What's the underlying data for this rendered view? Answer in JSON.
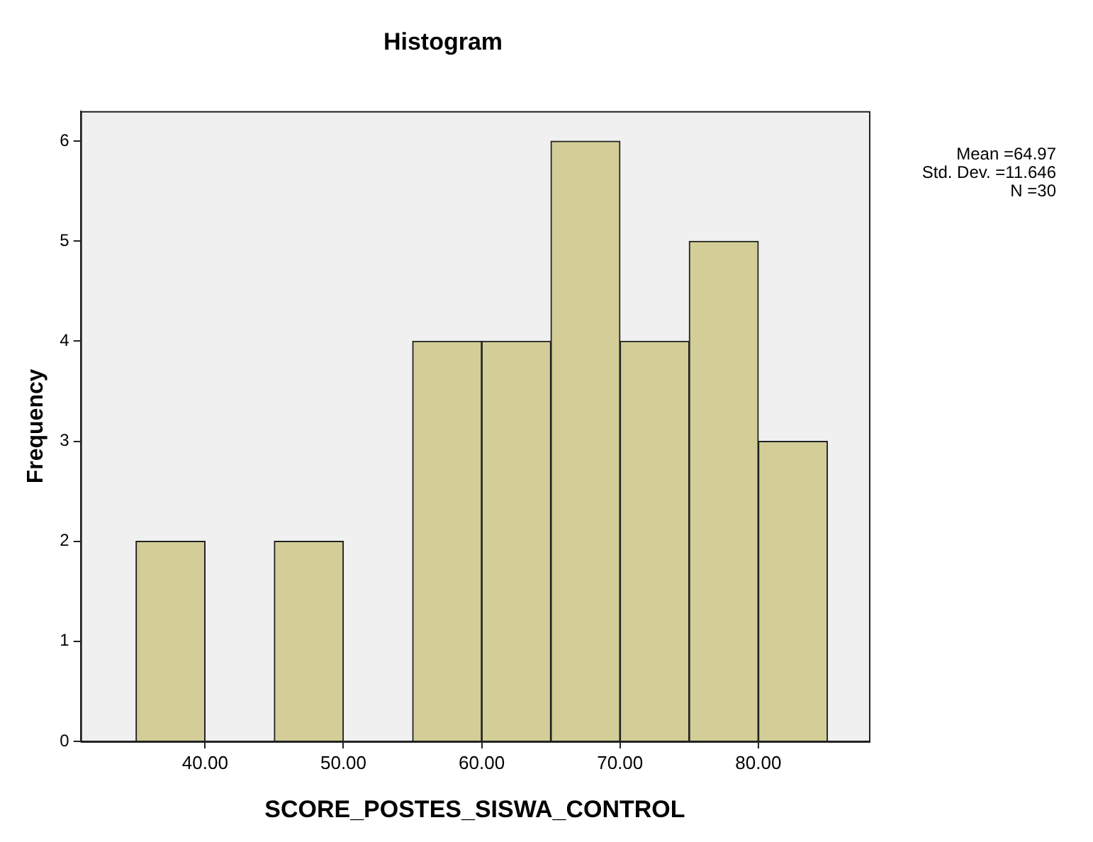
{
  "chart_data": {
    "type": "histogram",
    "title": "Histogram",
    "xlabel": "SCORE_POSTES_SISWA_CONTROL",
    "ylabel": "Frequency",
    "bins": [
      35,
      40,
      45,
      50,
      55,
      60,
      65,
      70,
      75,
      80,
      85
    ],
    "values": [
      2,
      0,
      2,
      0,
      4,
      4,
      6,
      4,
      5,
      3
    ],
    "color": "#d3ce97",
    "xlim": [
      31,
      88
    ],
    "ylim": [
      0,
      6.3
    ],
    "xticks": [
      {
        "value": 40,
        "label": "40.00"
      },
      {
        "value": 50,
        "label": "50.00"
      },
      {
        "value": 60,
        "label": "60.00"
      },
      {
        "value": 70,
        "label": "70.00"
      },
      {
        "value": 80,
        "label": "80.00"
      }
    ],
    "yticks": [
      0,
      1,
      2,
      3,
      4,
      5,
      6
    ],
    "annotations": [
      "Mean =64.97",
      "Std. Dev. =11.646",
      "N =30"
    ],
    "grid": false,
    "legend": false
  }
}
